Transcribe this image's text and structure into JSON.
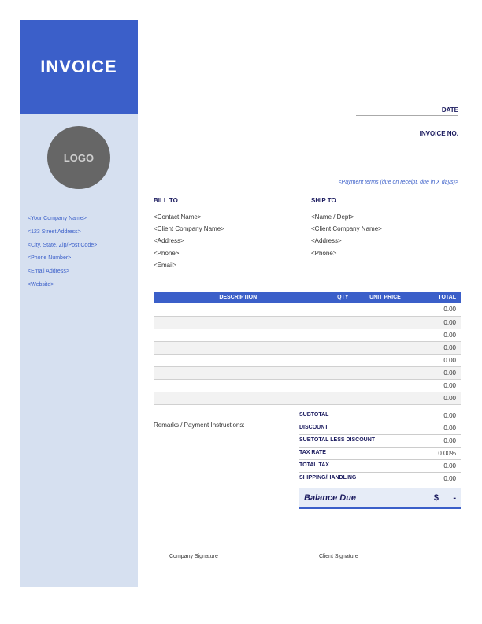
{
  "header": {
    "title": "INVOICE",
    "logo_text": "LOGO"
  },
  "colors": {
    "primary": "#3b5fc9",
    "sidebar": "#d6e0f0",
    "logo_bg": "#666666",
    "balance_bg": "#e6ecf7"
  },
  "company": {
    "name": "<Your Company Name>",
    "address": "<123 Street Address>",
    "city": "<City, State, Zip/Post Code>",
    "phone": "<Phone Number>",
    "email": "<Email Address>",
    "website": "<Website>"
  },
  "meta": {
    "date_label": "DATE",
    "invoice_no_label": "INVOICE NO.",
    "payment_terms": "<Payment terms (due on receipt, due in X days)>"
  },
  "bill_to": {
    "label": "BILL TO",
    "contact": "<Contact Name>",
    "company": "<Client Company Name>",
    "address": "<Address>",
    "phone": "<Phone>",
    "email": "<Email>"
  },
  "ship_to": {
    "label": "SHIP TO",
    "name": "<Name / Dept>",
    "company": "<Client Company Name>",
    "address": "<Address>",
    "phone": "<Phone>"
  },
  "table": {
    "headers": {
      "desc": "DESCRIPTION",
      "qty": "QTY",
      "price": "UNIT PRICE",
      "total": "TOTAL"
    },
    "rows": [
      {
        "total": "0.00"
      },
      {
        "total": "0.00"
      },
      {
        "total": "0.00"
      },
      {
        "total": "0.00"
      },
      {
        "total": "0.00"
      },
      {
        "total": "0.00"
      },
      {
        "total": "0.00"
      },
      {
        "total": "0.00"
      }
    ]
  },
  "remarks_label": "Remarks / Payment Instructions:",
  "totals": {
    "subtotal": {
      "label": "SUBTOTAL",
      "value": "0.00"
    },
    "discount": {
      "label": "DISCOUNT",
      "value": "0.00"
    },
    "less_discount": {
      "label": "SUBTOTAL LESS DISCOUNT",
      "value": "0.00"
    },
    "tax_rate": {
      "label": "TAX RATE",
      "value": "0.00%"
    },
    "total_tax": {
      "label": "TOTAL TAX",
      "value": "0.00"
    },
    "shipping": {
      "label": "SHIPPING/HANDLING",
      "value": "0.00"
    },
    "balance": {
      "label": "Balance Due",
      "currency": "$",
      "value": "-"
    }
  },
  "signatures": {
    "company": "Company Signature",
    "client": "Client Signature"
  }
}
